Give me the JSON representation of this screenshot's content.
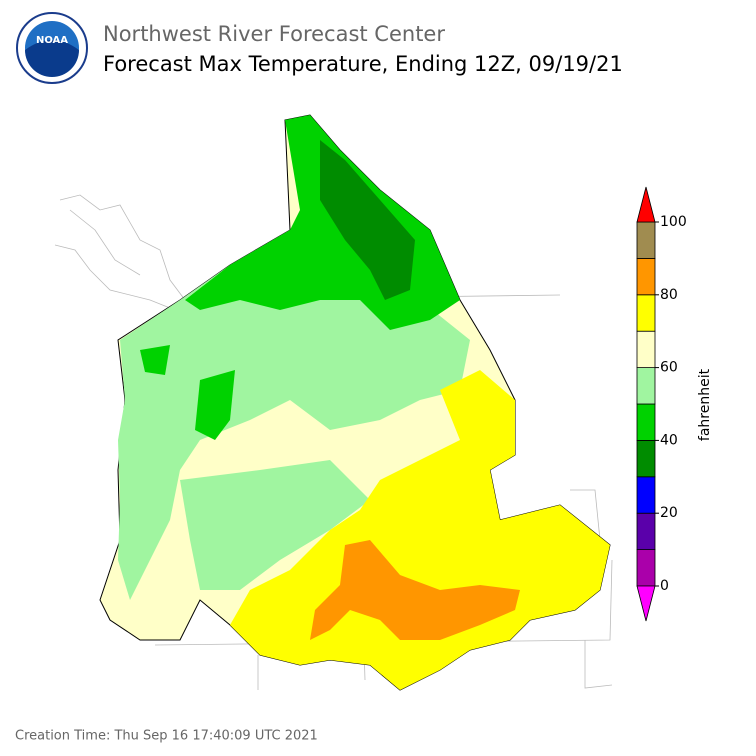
{
  "header": {
    "logo": "NOAA",
    "org": "Northwest River Forecast Center",
    "title": "Forecast Max Temperature, Ending 12Z, 09/19/21"
  },
  "colorbar": {
    "label": "fahrenheit",
    "bounds": [
      0,
      10,
      20,
      30,
      40,
      50,
      60,
      70,
      80,
      90,
      100
    ],
    "colors": [
      "#aa00aa",
      "#5a00aa",
      "#0000ff",
      "#008c00",
      "#00d200",
      "#a0f5a0",
      "#ffffc8",
      "#ffff00",
      "#ff9600",
      "#a08c50"
    ],
    "under_color": "#ff00ff",
    "over_color": "#ff0000",
    "ticks": [
      0,
      20,
      40,
      60,
      80,
      100
    ]
  },
  "footer": {
    "creation": "Creation Time: Thu Sep 16 17:40:09 UTC 2021"
  }
}
